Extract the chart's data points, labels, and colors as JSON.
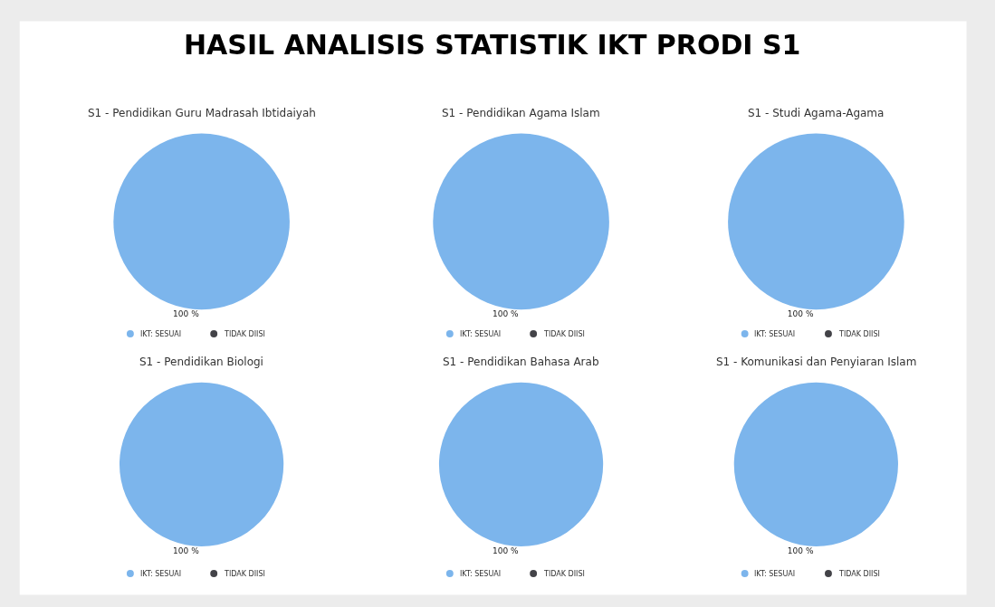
{
  "chart_data": [
    {
      "type": "other",
      "title": "HASIL ANALISIS STATISTIK IKT PRODI S1"
    },
    {
      "type": "pie",
      "title": "S1 - Pendidikan Guru Madrasah Ibtidaiyah",
      "categories": [
        "IKT: SESUAI",
        "TIDAK DIISI"
      ],
      "values": [
        100,
        0
      ],
      "colors": [
        "#7cb5ec",
        "#434348"
      ],
      "value_labels": [
        "100 %",
        null
      ],
      "legend": "bottom"
    },
    {
      "type": "pie",
      "title": "S1 - Pendidikan Agama Islam",
      "categories": [
        "IKT: SESUAI",
        "TIDAK DIISI"
      ],
      "values": [
        100,
        0
      ],
      "colors": [
        "#7cb5ec",
        "#434348"
      ],
      "value_labels": [
        "100 %",
        null
      ],
      "legend": "bottom"
    },
    {
      "type": "pie",
      "title": "S1 - Studi Agama-Agama",
      "categories": [
        "IKT: SESUAI",
        "TIDAK DIISI"
      ],
      "values": [
        100,
        0
      ],
      "colors": [
        "#7cb5ec",
        "#434348"
      ],
      "value_labels": [
        "100 %",
        null
      ],
      "legend": "bottom"
    },
    {
      "type": "pie",
      "title": "S1 - Pendidikan Biologi",
      "categories": [
        "IKT: SESUAI",
        "TIDAK DIISI"
      ],
      "values": [
        100,
        0
      ],
      "colors": [
        "#7cb5ec",
        "#434348"
      ],
      "value_labels": [
        "100 %",
        null
      ],
      "legend": "bottom"
    },
    {
      "type": "pie",
      "title": "S1 - Pendidikan Bahasa Arab",
      "categories": [
        "IKT: SESUAI",
        "TIDAK DIISI"
      ],
      "values": [
        100,
        0
      ],
      "colors": [
        "#7cb5ec",
        "#434348"
      ],
      "value_labels": [
        "100 %",
        null
      ],
      "legend": "bottom"
    },
    {
      "type": "pie",
      "title": "S1 - Komunikasi dan Penyiaran Islam",
      "categories": [
        "IKT: SESUAI",
        "TIDAK DIISI"
      ],
      "values": [
        100,
        0
      ],
      "colors": [
        "#7cb5ec",
        "#434348"
      ],
      "value_labels": [
        "100 %",
        null
      ],
      "legend": "bottom"
    }
  ]
}
